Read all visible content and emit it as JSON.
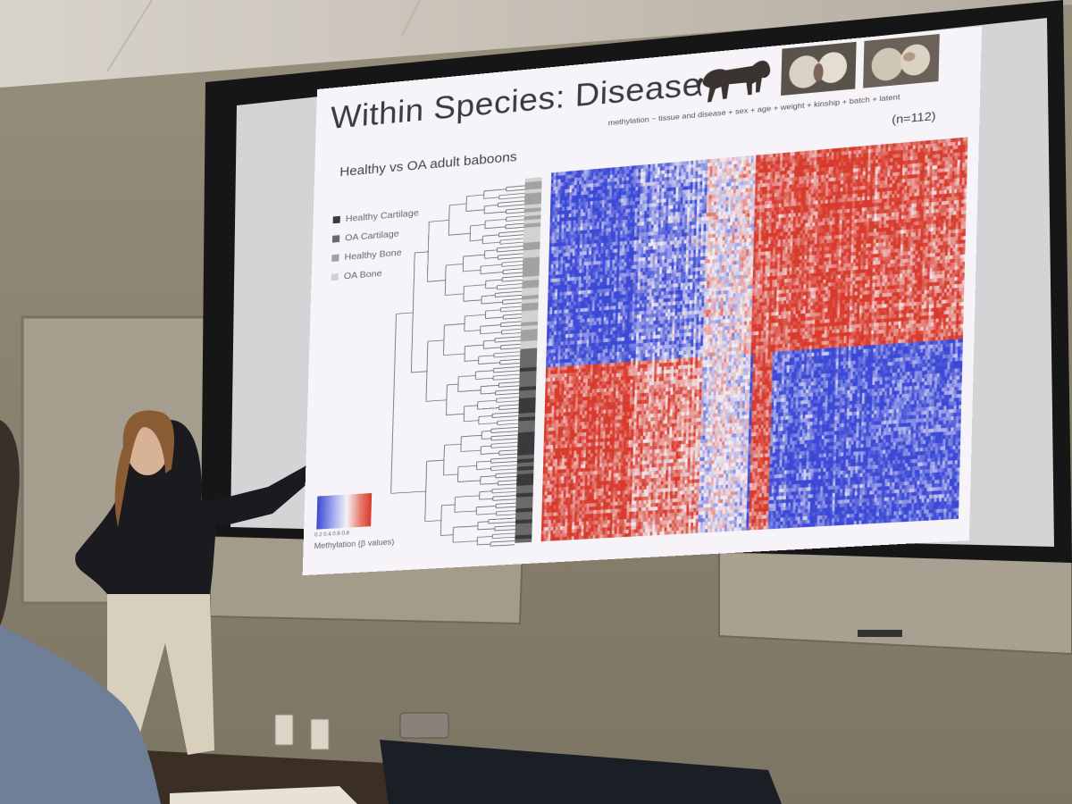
{
  "slide": {
    "title": "Within Species: Disease",
    "formula": "methylation ~ tissue and disease + sex + age + weight + kinship + batch + latent",
    "subtitle": "Healthy vs OA adult baboons",
    "n_label": "(n=112)",
    "legend": [
      {
        "label": "Healthy Cartilage",
        "color": "#3a3a3a"
      },
      {
        "label": "OA Cartilage",
        "color": "#6a6a6a"
      },
      {
        "label": "Healthy Bone",
        "color": "#a2a2a2"
      },
      {
        "label": "OA Bone",
        "color": "#d2d2d2"
      }
    ],
    "colorbar_ticks": "0.2  0.4  0.6  0.8",
    "colorbar_label": "Methylation (β values)",
    "heatmap_colors": {
      "low": "#3b49d6",
      "mid": "#f4f0f4",
      "high": "#d83a2c"
    },
    "icons": [
      "baboon-silhouette-icon",
      "cartilage-photo-1",
      "cartilage-photo-2"
    ]
  }
}
